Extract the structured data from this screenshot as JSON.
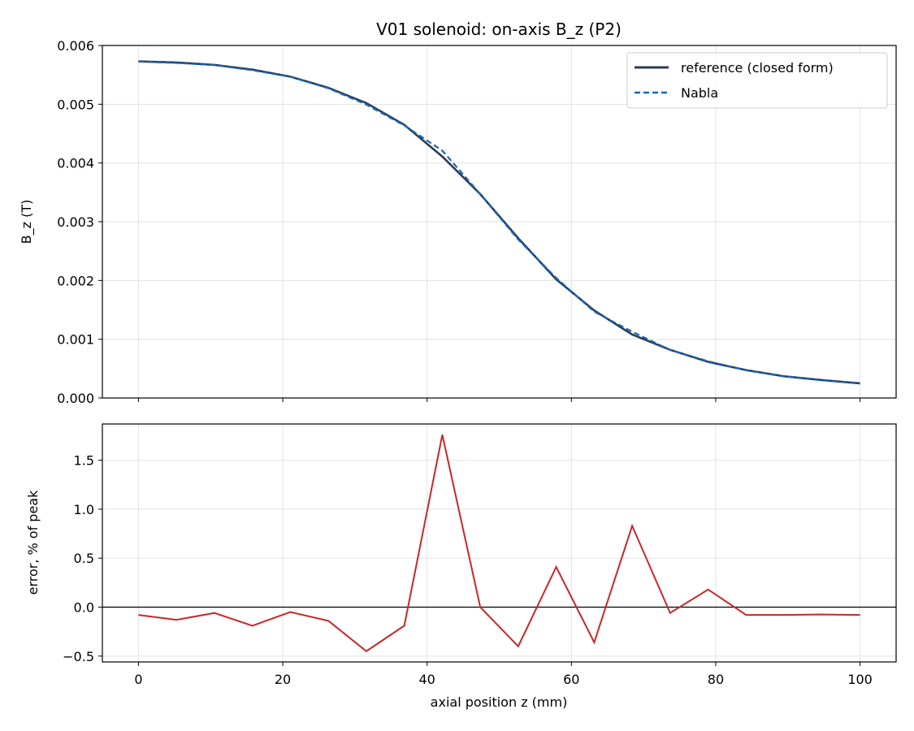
{
  "chart_data": [
    {
      "type": "line",
      "title": "V01 solenoid: on-axis B_z (P2)",
      "xlabel": "",
      "ylabel": "B_z (T)",
      "xlim": [
        -5,
        105
      ],
      "ylim": [
        0,
        0.006
      ],
      "yticks": [
        "0.000",
        "0.001",
        "0.002",
        "0.003",
        "0.004",
        "0.005",
        "0.006"
      ],
      "xticks": [
        0,
        20,
        40,
        60,
        80,
        100
      ],
      "grid": true,
      "legend": "top-right",
      "x": [
        0,
        5.26,
        10.53,
        15.79,
        21.05,
        26.32,
        31.58,
        36.84,
        42.11,
        47.37,
        52.63,
        57.89,
        63.16,
        68.42,
        73.68,
        78.95,
        84.21,
        89.47,
        94.74,
        100
      ],
      "series": [
        {
          "name": "reference (closed form)",
          "color": "#2c3e50",
          "style": "solid",
          "values": [
            0.00573,
            0.00571,
            0.00567,
            0.00559,
            0.00547,
            0.00528,
            0.00502,
            0.00465,
            0.00411,
            0.00347,
            0.00272,
            0.00202,
            0.00149,
            0.00108,
            0.00082,
            0.000615,
            0.000475,
            0.00037,
            0.000305,
            0.00025
          ]
        },
        {
          "name": "Nabla",
          "color": "#1565c0",
          "style": "dashed",
          "values": [
            0.005726,
            0.005703,
            0.005667,
            0.005579,
            0.005467,
            0.005272,
            0.004994,
            0.004639,
            0.004211,
            0.00347,
            0.002697,
            0.002044,
            0.001469,
            0.001128,
            0.000817,
            0.000625,
            0.000471,
            0.000366,
            0.000301,
            0.000245
          ]
        }
      ]
    },
    {
      "type": "line",
      "title": "",
      "xlabel": "axial position z (mm)",
      "ylabel": "error, % of peak",
      "xlim": [
        -5,
        105
      ],
      "ylim": [
        -0.56,
        1.87
      ],
      "yticks": [
        "−0.5",
        "0.0",
        "0.5",
        "1.0",
        "1.5"
      ],
      "xticks": [
        0,
        20,
        40,
        60,
        80,
        100
      ],
      "grid": true,
      "zero_line": true,
      "x": [
        0,
        5.26,
        10.53,
        15.79,
        21.05,
        26.32,
        31.58,
        36.84,
        42.11,
        47.37,
        52.63,
        57.89,
        63.16,
        68.42,
        73.68,
        78.95,
        84.21,
        89.47,
        94.74,
        100
      ],
      "series": [
        {
          "color": "#c62828",
          "style": "solid",
          "values": [
            -0.08,
            -0.13,
            -0.06,
            -0.19,
            -0.05,
            -0.14,
            -0.45,
            -0.19,
            1.76,
            0.0,
            -0.4,
            0.41,
            -0.36,
            0.83,
            -0.06,
            0.18,
            -0.08,
            -0.08,
            -0.075,
            -0.08
          ]
        }
      ]
    }
  ]
}
